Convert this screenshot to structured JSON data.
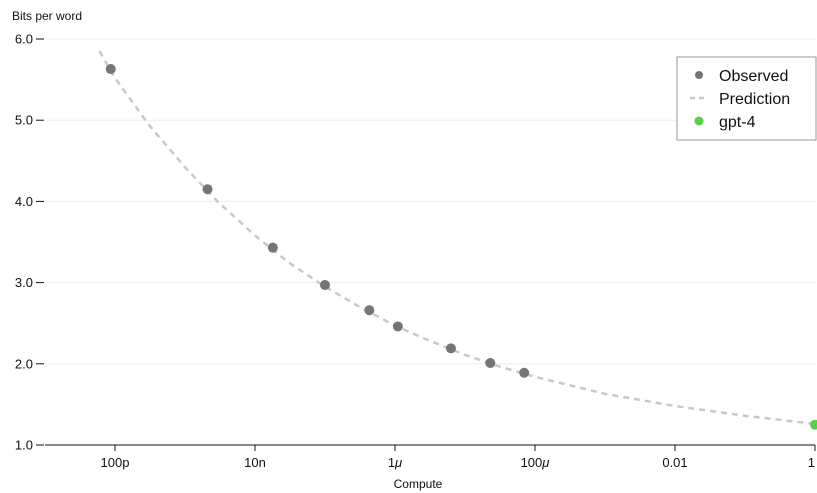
{
  "colors": {
    "observed": "#757575",
    "prediction": "#c8c8c8",
    "gpt4": "#5ad14b",
    "grid": "#eeeeee",
    "axis": "#111111",
    "legend_border": "#999999"
  },
  "chart_data": {
    "type": "scatter",
    "xlabel": "Compute",
    "ylabel": "Bits per word",
    "x_scale": "log",
    "xlim": [
      1e-11,
      1
    ],
    "ylim": [
      1.0,
      6.0
    ],
    "x_ticks": [
      {
        "value": 1e-10,
        "label": "100p"
      },
      {
        "value": 1e-08,
        "label": "10n"
      },
      {
        "value": 1e-06,
        "label": "1μ"
      },
      {
        "value": 0.0001,
        "label": "100μ"
      },
      {
        "value": 0.01,
        "label": "0.01"
      },
      {
        "value": 1,
        "label": "1"
      }
    ],
    "y_ticks": [
      {
        "value": 1.0,
        "label": "1.0"
      },
      {
        "value": 2.0,
        "label": "2.0"
      },
      {
        "value": 3.0,
        "label": "3.0"
      },
      {
        "value": 4.0,
        "label": "4.0"
      },
      {
        "value": 5.0,
        "label": "5.0"
      },
      {
        "value": 6.0,
        "label": "6.0"
      }
    ],
    "grid": true,
    "legend_position": "top-right",
    "series": [
      {
        "name": "Observed",
        "kind": "scatter",
        "color": "#757575",
        "points": [
          {
            "x": 8.7e-11,
            "y": 5.63
          },
          {
            "x": 2.1e-09,
            "y": 4.15
          },
          {
            "x": 1.8e-08,
            "y": 3.43
          },
          {
            "x": 1e-07,
            "y": 2.97
          },
          {
            "x": 4.3e-07,
            "y": 2.66
          },
          {
            "x": 1.1e-06,
            "y": 2.46
          },
          {
            "x": 6.3e-06,
            "y": 2.19
          },
          {
            "x": 2.3e-05,
            "y": 2.01
          },
          {
            "x": 7e-05,
            "y": 1.89
          }
        ]
      },
      {
        "name": "Prediction",
        "kind": "line",
        "style": "dashed",
        "color": "#c8c8c8",
        "points": [
          {
            "x": 6e-11,
            "y": 5.85
          },
          {
            "x": 1e-10,
            "y": 5.52
          },
          {
            "x": 3e-10,
            "y": 4.95
          },
          {
            "x": 1e-09,
            "y": 4.42
          },
          {
            "x": 3e-09,
            "y": 3.99
          },
          {
            "x": 1e-08,
            "y": 3.58
          },
          {
            "x": 3e-08,
            "y": 3.25
          },
          {
            "x": 1e-07,
            "y": 2.95
          },
          {
            "x": 3e-07,
            "y": 2.71
          },
          {
            "x": 1e-06,
            "y": 2.47
          },
          {
            "x": 3e-06,
            "y": 2.29
          },
          {
            "x": 1e-05,
            "y": 2.11
          },
          {
            "x": 3e-05,
            "y": 1.97
          },
          {
            "x": 0.0001,
            "y": 1.84
          },
          {
            "x": 0.001,
            "y": 1.63
          },
          {
            "x": 0.01,
            "y": 1.48
          },
          {
            "x": 0.1,
            "y": 1.36
          },
          {
            "x": 1,
            "y": 1.26
          }
        ]
      },
      {
        "name": "gpt-4",
        "kind": "scatter",
        "color": "#5ad14b",
        "points": [
          {
            "x": 1,
            "y": 1.25
          }
        ]
      }
    ]
  }
}
